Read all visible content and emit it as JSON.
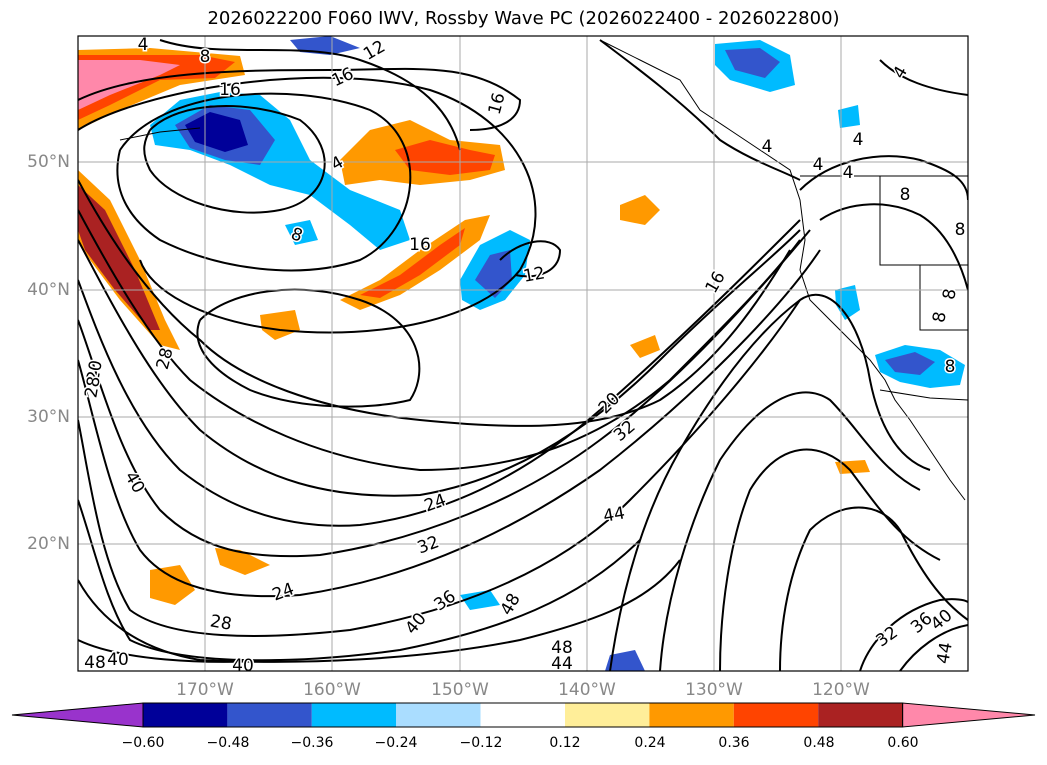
{
  "title": "2026022200 F060 IWV, Rossby Wave PC (2026022400 - 2026022800)",
  "lat_labels": [
    "50°N",
    "40°N",
    "30°N",
    "20°N"
  ],
  "lon_labels": [
    "170°W",
    "160°W",
    "150°W",
    "140°W",
    "130°W",
    "120°W"
  ],
  "colorbar": {
    "ticks": [
      "−0.60",
      "−0.48",
      "−0.36",
      "−0.24",
      "−0.12",
      "0.12",
      "0.24",
      "0.36",
      "0.48",
      "0.60"
    ],
    "colors": [
      "#9933cc",
      "#000099",
      "#3355cc",
      "#00bbff",
      "#aaddff",
      "#ffffff",
      "#ffee99",
      "#ff9900",
      "#ff4400",
      "#aa2222",
      "#ff88aa"
    ]
  },
  "contour_labels": [
    {
      "text": "4"
    },
    {
      "text": "8"
    },
    {
      "text": "12"
    },
    {
      "text": "16"
    },
    {
      "text": "16"
    },
    {
      "text": "16"
    },
    {
      "text": "4"
    },
    {
      "text": "8"
    },
    {
      "text": "12"
    },
    {
      "text": "16"
    },
    {
      "text": "4"
    },
    {
      "text": "4"
    },
    {
      "text": "4"
    },
    {
      "text": "4"
    },
    {
      "text": "4"
    },
    {
      "text": "8"
    },
    {
      "text": "8"
    },
    {
      "text": "8"
    },
    {
      "text": "8"
    },
    {
      "text": "8"
    },
    {
      "text": "20"
    },
    {
      "text": "24"
    },
    {
      "text": "28"
    },
    {
      "text": "32"
    },
    {
      "text": "32"
    },
    {
      "text": "36"
    },
    {
      "text": "40"
    },
    {
      "text": "44"
    },
    {
      "text": "48"
    },
    {
      "text": "48"
    },
    {
      "text": "44"
    },
    {
      "text": "40"
    },
    {
      "text": "24"
    },
    {
      "text": "28"
    },
    {
      "text": "40"
    },
    {
      "text": "48"
    },
    {
      "text": "40"
    },
    {
      "text": "16"
    },
    {
      "text": "20"
    },
    {
      "text": "32"
    },
    {
      "text": "36"
    },
    {
      "text": "40"
    },
    {
      "text": "44"
    },
    {
      "text": "28"
    }
  ]
}
